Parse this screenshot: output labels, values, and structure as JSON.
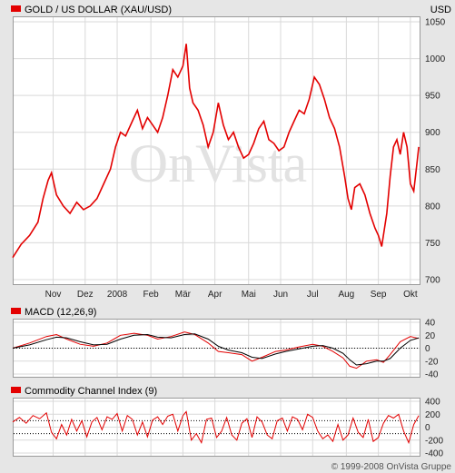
{
  "header": {
    "title": "GOLD / US DOLLAR (XAU/USD)",
    "currency": "USD"
  },
  "watermark": "OnVista",
  "copyright": "© 1999-2008 OnVista Gruppe",
  "colors": {
    "accent": "#e30000",
    "grid": "#d9d9d9",
    "panel_bg": "#ffffff",
    "page_bg": "#e6e6e6"
  },
  "chart_data": [
    {
      "type": "line",
      "name": "price",
      "title": "GOLD / US DOLLAR (XAU/USD)",
      "ylabel": "USD",
      "ylim": [
        700,
        1050
      ],
      "y_ticks": [
        700,
        750,
        800,
        850,
        900,
        950,
        1000,
        1050
      ],
      "x_tick_labels": [
        "Nov",
        "Dez",
        "2008",
        "Feb",
        "Mär",
        "Apr",
        "Mai",
        "Jun",
        "Jul",
        "Aug",
        "Sep",
        "Okt"
      ],
      "x_tick_positions": [
        1.2,
        2.15,
        3.1,
        4.1,
        5.05,
        6.0,
        7.0,
        7.95,
        8.9,
        9.9,
        10.85,
        11.8
      ],
      "x_range": [
        0,
        12.1
      ],
      "points": [
        [
          0.0,
          730
        ],
        [
          0.25,
          748
        ],
        [
          0.5,
          760
        ],
        [
          0.75,
          778
        ],
        [
          0.9,
          810
        ],
        [
          1.05,
          835
        ],
        [
          1.15,
          845
        ],
        [
          1.3,
          815
        ],
        [
          1.5,
          800
        ],
        [
          1.7,
          790
        ],
        [
          1.9,
          805
        ],
        [
          2.1,
          795
        ],
        [
          2.3,
          800
        ],
        [
          2.5,
          810
        ],
        [
          2.7,
          830
        ],
        [
          2.9,
          850
        ],
        [
          3.05,
          880
        ],
        [
          3.2,
          900
        ],
        [
          3.35,
          895
        ],
        [
          3.55,
          915
        ],
        [
          3.7,
          930
        ],
        [
          3.85,
          905
        ],
        [
          4.0,
          920
        ],
        [
          4.15,
          910
        ],
        [
          4.3,
          900
        ],
        [
          4.45,
          920
        ],
        [
          4.6,
          950
        ],
        [
          4.75,
          985
        ],
        [
          4.9,
          975
        ],
        [
          5.05,
          990
        ],
        [
          5.15,
          1020
        ],
        [
          5.25,
          960
        ],
        [
          5.35,
          940
        ],
        [
          5.5,
          930
        ],
        [
          5.65,
          910
        ],
        [
          5.8,
          880
        ],
        [
          5.95,
          900
        ],
        [
          6.1,
          940
        ],
        [
          6.25,
          910
        ],
        [
          6.4,
          890
        ],
        [
          6.55,
          900
        ],
        [
          6.7,
          880
        ],
        [
          6.85,
          865
        ],
        [
          7.0,
          870
        ],
        [
          7.15,
          885
        ],
        [
          7.3,
          905
        ],
        [
          7.45,
          915
        ],
        [
          7.6,
          890
        ],
        [
          7.75,
          885
        ],
        [
          7.9,
          875
        ],
        [
          8.05,
          880
        ],
        [
          8.2,
          900
        ],
        [
          8.35,
          915
        ],
        [
          8.5,
          930
        ],
        [
          8.65,
          925
        ],
        [
          8.8,
          945
        ],
        [
          8.95,
          975
        ],
        [
          9.1,
          965
        ],
        [
          9.25,
          945
        ],
        [
          9.4,
          920
        ],
        [
          9.55,
          905
        ],
        [
          9.7,
          880
        ],
        [
          9.85,
          840
        ],
        [
          9.95,
          810
        ],
        [
          10.05,
          795
        ],
        [
          10.15,
          825
        ],
        [
          10.3,
          830
        ],
        [
          10.45,
          815
        ],
        [
          10.6,
          790
        ],
        [
          10.75,
          770
        ],
        [
          10.85,
          760
        ],
        [
          10.95,
          745
        ],
        [
          11.1,
          790
        ],
        [
          11.2,
          840
        ],
        [
          11.3,
          880
        ],
        [
          11.4,
          890
        ],
        [
          11.5,
          870
        ],
        [
          11.6,
          900
        ],
        [
          11.7,
          880
        ],
        [
          11.8,
          830
        ],
        [
          11.9,
          820
        ],
        [
          12.0,
          860
        ],
        [
          12.05,
          880
        ]
      ]
    },
    {
      "type": "line",
      "name": "macd",
      "title": "MACD (12,26,9)",
      "ylim": [
        -40,
        40
      ],
      "y_ticks": [
        -40,
        -20,
        0,
        20,
        40
      ],
      "x_range": [
        0,
        12.1
      ],
      "series": [
        {
          "points": [
            [
              0.0,
              0
            ],
            [
              0.5,
              8
            ],
            [
              1.0,
              18
            ],
            [
              1.3,
              21
            ],
            [
              1.6,
              14
            ],
            [
              2.0,
              6
            ],
            [
              2.4,
              3
            ],
            [
              2.8,
              8
            ],
            [
              3.2,
              20
            ],
            [
              3.6,
              23
            ],
            [
              4.0,
              20
            ],
            [
              4.3,
              14
            ],
            [
              4.7,
              18
            ],
            [
              5.1,
              25
            ],
            [
              5.4,
              21
            ],
            [
              5.8,
              8
            ],
            [
              6.1,
              -5
            ],
            [
              6.4,
              -7
            ],
            [
              6.8,
              -10
            ],
            [
              7.1,
              -20
            ],
            [
              7.4,
              -14
            ],
            [
              7.8,
              -5
            ],
            [
              8.1,
              -3
            ],
            [
              8.5,
              2
            ],
            [
              8.9,
              6
            ],
            [
              9.2,
              3
            ],
            [
              9.5,
              -5
            ],
            [
              9.8,
              -15
            ],
            [
              10.0,
              -28
            ],
            [
              10.2,
              -31
            ],
            [
              10.5,
              -20
            ],
            [
              10.8,
              -18
            ],
            [
              11.0,
              -22
            ],
            [
              11.2,
              -10
            ],
            [
              11.5,
              10
            ],
            [
              11.8,
              18
            ],
            [
              12.05,
              15
            ]
          ]
        },
        {
          "points": [
            [
              0.0,
              0
            ],
            [
              0.5,
              5
            ],
            [
              1.0,
              13
            ],
            [
              1.3,
              17
            ],
            [
              1.6,
              16
            ],
            [
              2.0,
              10
            ],
            [
              2.4,
              5
            ],
            [
              2.8,
              6
            ],
            [
              3.2,
              14
            ],
            [
              3.6,
              20
            ],
            [
              4.0,
              21
            ],
            [
              4.3,
              17
            ],
            [
              4.7,
              16
            ],
            [
              5.1,
              21
            ],
            [
              5.4,
              22
            ],
            [
              5.8,
              14
            ],
            [
              6.1,
              3
            ],
            [
              6.4,
              -3
            ],
            [
              6.8,
              -7
            ],
            [
              7.1,
              -14
            ],
            [
              7.4,
              -16
            ],
            [
              7.8,
              -9
            ],
            [
              8.1,
              -5
            ],
            [
              8.5,
              -1
            ],
            [
              8.9,
              3
            ],
            [
              9.2,
              4
            ],
            [
              9.5,
              0
            ],
            [
              9.8,
              -8
            ],
            [
              10.0,
              -18
            ],
            [
              10.2,
              -26
            ],
            [
              10.5,
              -24
            ],
            [
              10.8,
              -20
            ],
            [
              11.0,
              -20
            ],
            [
              11.2,
              -16
            ],
            [
              11.5,
              0
            ],
            [
              11.8,
              12
            ],
            [
              12.05,
              16
            ]
          ]
        }
      ]
    },
    {
      "type": "line",
      "name": "cci",
      "title": "Commodity Channel Index (9)",
      "ylim": [
        -400,
        400
      ],
      "y_ticks": [
        -400,
        -200,
        0,
        200,
        400
      ],
      "ref_lines": [
        100,
        -100
      ],
      "x_range": [
        0,
        12.1
      ],
      "points": [
        [
          0.0,
          80
        ],
        [
          0.2,
          150
        ],
        [
          0.4,
          60
        ],
        [
          0.6,
          180
        ],
        [
          0.8,
          130
        ],
        [
          1.0,
          220
        ],
        [
          1.15,
          -80
        ],
        [
          1.3,
          -180
        ],
        [
          1.45,
          40
        ],
        [
          1.6,
          -120
        ],
        [
          1.75,
          120
        ],
        [
          1.9,
          -60
        ],
        [
          2.05,
          100
        ],
        [
          2.2,
          -150
        ],
        [
          2.35,
          80
        ],
        [
          2.5,
          150
        ],
        [
          2.65,
          -40
        ],
        [
          2.8,
          160
        ],
        [
          2.95,
          120
        ],
        [
          3.1,
          210
        ],
        [
          3.25,
          -60
        ],
        [
          3.4,
          180
        ],
        [
          3.55,
          120
        ],
        [
          3.7,
          -120
        ],
        [
          3.85,
          80
        ],
        [
          4.0,
          -150
        ],
        [
          4.15,
          110
        ],
        [
          4.3,
          160
        ],
        [
          4.45,
          40
        ],
        [
          4.6,
          170
        ],
        [
          4.75,
          200
        ],
        [
          4.9,
          -60
        ],
        [
          5.05,
          180
        ],
        [
          5.15,
          240
        ],
        [
          5.3,
          -200
        ],
        [
          5.45,
          -100
        ],
        [
          5.6,
          -240
        ],
        [
          5.75,
          120
        ],
        [
          5.9,
          140
        ],
        [
          6.05,
          -160
        ],
        [
          6.2,
          -60
        ],
        [
          6.35,
          150
        ],
        [
          6.5,
          -120
        ],
        [
          6.65,
          -200
        ],
        [
          6.8,
          60
        ],
        [
          6.95,
          130
        ],
        [
          7.1,
          -160
        ],
        [
          7.25,
          160
        ],
        [
          7.4,
          80
        ],
        [
          7.55,
          -120
        ],
        [
          7.7,
          -180
        ],
        [
          7.85,
          100
        ],
        [
          8.0,
          140
        ],
        [
          8.15,
          -60
        ],
        [
          8.3,
          160
        ],
        [
          8.45,
          120
        ],
        [
          8.6,
          -40
        ],
        [
          8.75,
          200
        ],
        [
          8.9,
          150
        ],
        [
          9.05,
          -60
        ],
        [
          9.2,
          -180
        ],
        [
          9.35,
          -120
        ],
        [
          9.5,
          -220
        ],
        [
          9.65,
          40
        ],
        [
          9.8,
          -200
        ],
        [
          9.95,
          -120
        ],
        [
          10.1,
          140
        ],
        [
          10.25,
          -80
        ],
        [
          10.4,
          -160
        ],
        [
          10.55,
          120
        ],
        [
          10.7,
          -220
        ],
        [
          10.85,
          -160
        ],
        [
          11.0,
          60
        ],
        [
          11.15,
          180
        ],
        [
          11.3,
          140
        ],
        [
          11.45,
          200
        ],
        [
          11.6,
          -60
        ],
        [
          11.75,
          -240
        ],
        [
          11.9,
          40
        ],
        [
          12.05,
          180
        ]
      ]
    }
  ]
}
